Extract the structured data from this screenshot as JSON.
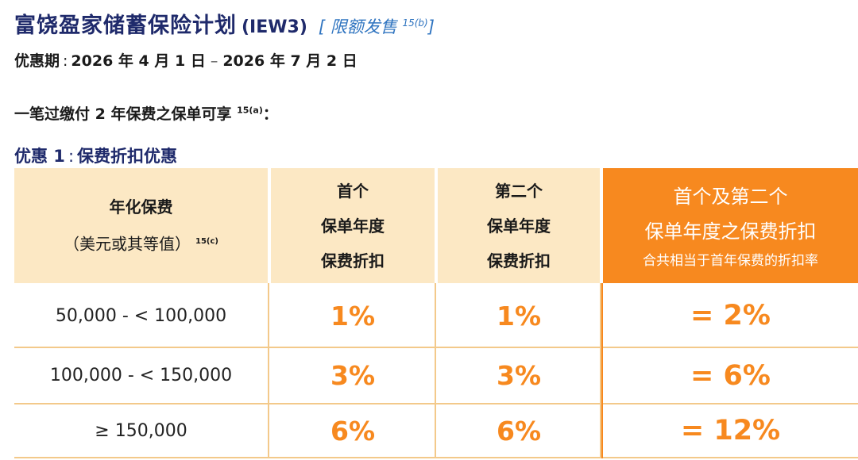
{
  "header": {
    "title": "富饶盈家储蓄保险计划",
    "code": "(IEW3)",
    "limited_open": "[",
    "limited_text": "限额发售",
    "limited_note": "15(b)",
    "limited_close": "]"
  },
  "period": {
    "label": "优惠期",
    "separator": ":",
    "start": "2026 年 4 月 1 日",
    "dash": "–",
    "end": "2026 年 7 月 2 日"
  },
  "intro": {
    "text": "一笔过缴付 2 年保费之保单可享",
    "note": "15(a)",
    "suffix": "："
  },
  "offer": {
    "label": "优惠 1",
    "separator": ":",
    "name": "保费折扣优惠"
  },
  "table": {
    "col1": {
      "line1": "年化保费",
      "line2": "（美元或其等值）",
      "note": "15(c)"
    },
    "col2": {
      "line1": "首个",
      "line2": "保单年度",
      "line3": "保费折扣"
    },
    "col3": {
      "line1": "第二个",
      "line2": "保单年度",
      "line3": "保费折扣"
    },
    "col4": {
      "line1": "首个及第二个",
      "line2": "保单年度之保费折扣",
      "line3": "合共相当于首年保费的折扣率"
    },
    "rows": [
      {
        "range": "50,000 - < 100,000",
        "first": "1%",
        "second": "1%",
        "total": "= 2%"
      },
      {
        "range": "100,000 - < 150,000",
        "first": "3%",
        "second": "3%",
        "total": "= 6%"
      },
      {
        "range": "≥ 150,000",
        "first": "6%",
        "second": "6%",
        "total": "= 12%"
      }
    ]
  },
  "colors": {
    "title": "#1f2a6b",
    "link": "#2f74c0",
    "header_bg": "#fce8c4",
    "accent_orange": "#f7891f"
  }
}
